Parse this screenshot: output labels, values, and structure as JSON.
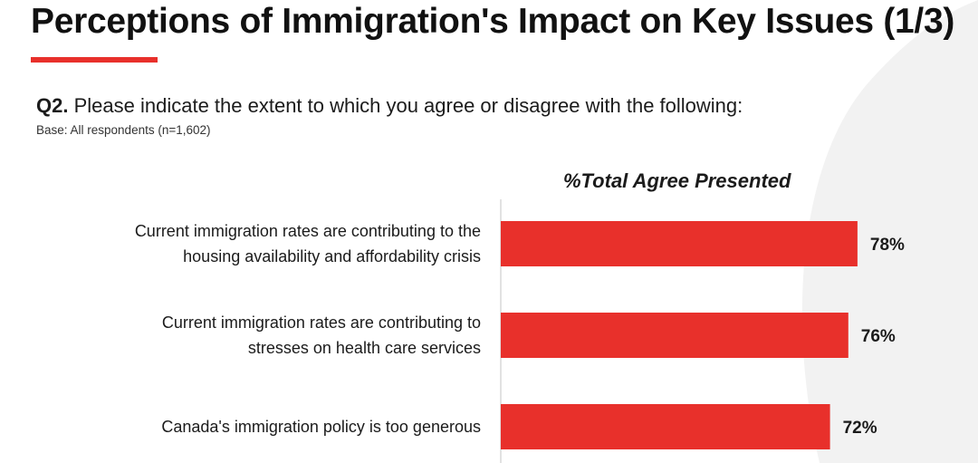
{
  "header": {
    "title": "Perceptions of Immigration's Impact on Key Issues (1/3)"
  },
  "question": {
    "number": "Q2.",
    "text": "Please indicate the extent to which you agree or disagree with the following:",
    "base": "Base: All respondents (n=1,602)"
  },
  "colors": {
    "accent": "#e8302b",
    "bar": "#e8302b",
    "text": "#1b1b1b"
  },
  "chart_data": {
    "type": "bar",
    "orientation": "horizontal",
    "title": "%Total Agree Presented",
    "categories": [
      [
        "Current immigration rates are contributing to the",
        "housing availability and affordability crisis"
      ],
      [
        "Current immigration rates are contributing to",
        "stresses on health care services"
      ],
      [
        "Canada's immigration policy is too generous"
      ]
    ],
    "values": [
      78,
      76,
      72
    ],
    "value_labels": [
      "78%",
      "76%",
      "72%"
    ],
    "xlim": [
      0,
      100
    ],
    "grid": false,
    "legend": "none"
  }
}
